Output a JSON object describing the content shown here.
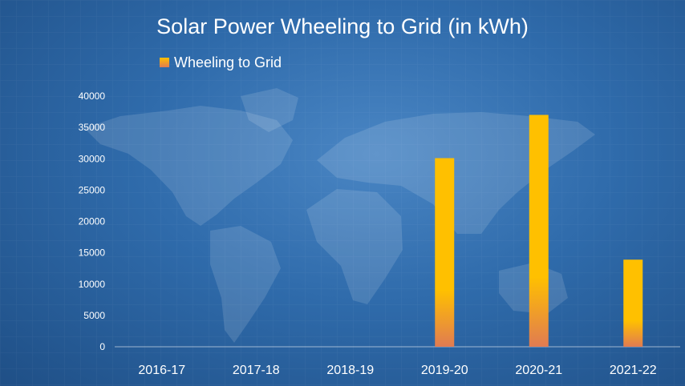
{
  "chart_data": {
    "type": "bar",
    "title": "Solar Power Wheeling to Grid (in kWh)",
    "categories": [
      "2016-17",
      "2017-18",
      "2018-19",
      "2019-20",
      "2020-21",
      "2021-22"
    ],
    "series": [
      {
        "name": "Wheeling to Grid",
        "values": [
          0,
          0,
          0,
          30100,
          37000,
          13900
        ]
      }
    ],
    "xlabel": "",
    "ylabel": "",
    "ylim": [
      0,
      40000
    ],
    "yticks": [
      "0",
      "5000",
      "10000",
      "15000",
      "20000",
      "25000",
      "30000",
      "35000",
      "40000"
    ],
    "legend_position": "top-left",
    "grid": false,
    "colors": {
      "bar_top": "#ffc000",
      "bar_bottom": "#e07b52",
      "text": "#ffffff",
      "background": "#2f6bab"
    }
  }
}
